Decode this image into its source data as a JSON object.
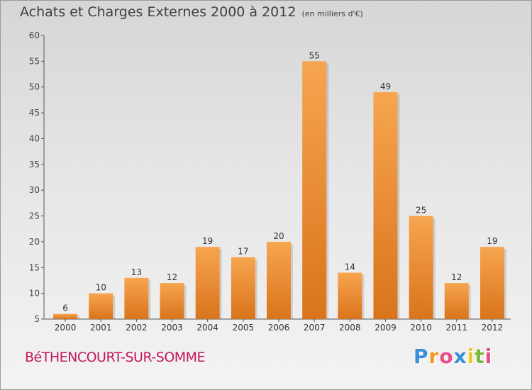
{
  "chart_data": {
    "type": "bar",
    "title": "Achats et Charges Externes 2000 à 2012",
    "subtitle": "(en milliers d'€)",
    "categories": [
      "2000",
      "2001",
      "2002",
      "2003",
      "2004",
      "2005",
      "2006",
      "2007",
      "2008",
      "2009",
      "2010",
      "2011",
      "2012"
    ],
    "values": [
      6,
      10,
      13,
      12,
      19,
      17,
      20,
      55,
      14,
      49,
      25,
      12,
      19
    ],
    "data_labels": [
      "6",
      "10",
      "13",
      "12",
      "19",
      "17",
      "20",
      "55",
      "14",
      "49",
      "25",
      "12",
      "19"
    ],
    "yticks": [
      5,
      10,
      15,
      20,
      25,
      30,
      35,
      40,
      45,
      50,
      55,
      60
    ],
    "ylim": [
      5,
      60
    ],
    "xlabel": "",
    "ylabel": "",
    "grid": false,
    "bar_color": "#f0963a",
    "bar_color_dark": "#c96a18"
  },
  "footer": {
    "town": "BéTHENCOURT-SUR-SOMME",
    "logo_letters": [
      "P",
      "r",
      "o",
      "x",
      "i",
      "t",
      "i"
    ],
    "logo_colors": [
      "#3a8fd6",
      "#f29a1f",
      "#e84d8a",
      "#3a8fd6",
      "#f2c91f",
      "#7ab83a",
      "#e84d8a"
    ]
  },
  "colors": {
    "town": "#c2185b",
    "axis": "#555555"
  }
}
